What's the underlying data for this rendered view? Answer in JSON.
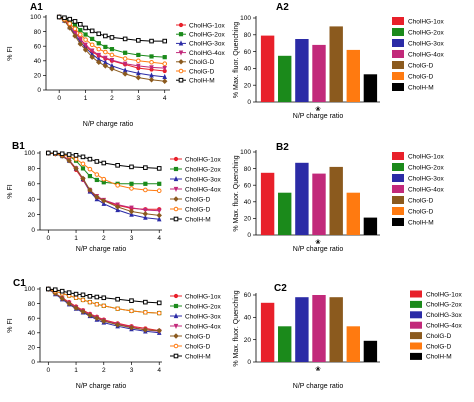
{
  "figure": {
    "panels": [
      "A1",
      "A2",
      "B1",
      "B2",
      "C1",
      "C2"
    ]
  },
  "legend": {
    "series": [
      "CholHG-1ox",
      "CholHG-2ox",
      "CholHG-3ox",
      "CholHG-4ox",
      "CholG-D",
      "CholG-D",
      "CholH-M"
    ],
    "colors": [
      "#e8202a",
      "#1b8a1b",
      "#2b2ba6",
      "#c2297a",
      "#8b5a1e",
      "#ff7a10",
      "#000000"
    ]
  },
  "chart_data": [
    {
      "panel": "A1",
      "type": "line",
      "xlabel": "N/P charge ratio",
      "ylabel": "% FI",
      "xlim": [
        -0.5,
        4.2
      ],
      "ylim": [
        0,
        100
      ],
      "xticks": [
        "0",
        "1",
        "2",
        "3",
        "4"
      ],
      "yticks": [
        "0",
        "20",
        "40",
        "60",
        "80",
        "100"
      ],
      "x": [
        0,
        0.2,
        0.4,
        0.6,
        0.8,
        1.0,
        1.25,
        1.5,
        1.75,
        2.0,
        2.5,
        3.0,
        3.5,
        4.0
      ],
      "series": [
        {
          "name": "CholHG-1ox",
          "values": [
            100,
            96,
            88,
            80,
            70,
            60,
            52,
            47,
            43,
            40,
            35,
            30,
            28,
            26
          ]
        },
        {
          "name": "CholHG-2ox",
          "values": [
            100,
            98,
            94,
            89,
            82,
            76,
            70,
            64,
            59,
            56,
            51,
            48,
            46,
            45
          ]
        },
        {
          "name": "CholHG-3ox",
          "values": [
            100,
            95,
            86,
            76,
            66,
            58,
            49,
            42,
            38,
            33,
            27,
            23,
            20,
            18
          ]
        },
        {
          "name": "CholHG-4ox",
          "values": [
            100,
            96,
            88,
            79,
            70,
            62,
            54,
            48,
            44,
            41,
            36,
            33,
            31,
            30
          ]
        },
        {
          "name": "CholG-D",
          "values": [
            100,
            95,
            85,
            74,
            63,
            55,
            45,
            38,
            33,
            29,
            22,
            17,
            14,
            12
          ]
        },
        {
          "name": "CholG-D",
          "values": [
            100,
            97,
            91,
            84,
            76,
            69,
            62,
            56,
            52,
            48,
            43,
            40,
            38,
            36
          ]
        },
        {
          "name": "CholH-M",
          "values": [
            100,
            99,
            97,
            94,
            90,
            85,
            81,
            77,
            74,
            72,
            70,
            68,
            67,
            67
          ]
        }
      ]
    },
    {
      "panel": "A2",
      "type": "bar",
      "xlabel": "N/P charge ratio",
      "ylabel": "% Max. fluor. Quenching",
      "ylim": [
        0,
        100
      ],
      "yticks": [
        "0",
        "20",
        "40",
        "60",
        "80",
        "100"
      ],
      "categories": [
        "CholHG-1ox",
        "CholHG-2ox",
        "CholHG-3ox",
        "CholHG-4ox",
        "CholG-D",
        "CholG-D",
        "CholH-M"
      ],
      "values": [
        79,
        55,
        75,
        68,
        90,
        62,
        33
      ]
    },
    {
      "panel": "B1",
      "type": "line",
      "xlabel": "N/P charge ratio",
      "ylabel": "% FI",
      "xlim": [
        -0.3,
        4.1
      ],
      "ylim": [
        0,
        100
      ],
      "xticks": [
        "0",
        "1",
        "2",
        "3",
        "4"
      ],
      "yticks": [
        "0",
        "20",
        "40",
        "60",
        "80",
        "100"
      ],
      "x": [
        0,
        0.25,
        0.5,
        0.75,
        1.0,
        1.25,
        1.5,
        1.75,
        2.0,
        2.5,
        3.0,
        3.5,
        4.0
      ],
      "series": [
        {
          "name": "CholHG-1ox",
          "values": [
            100,
            99,
            97,
            90,
            78,
            65,
            50,
            42,
            38,
            32,
            28,
            27,
            27
          ]
        },
        {
          "name": "CholHG-2ox",
          "values": [
            100,
            99,
            98,
            96,
            90,
            80,
            70,
            65,
            62,
            60,
            60,
            60,
            60
          ]
        },
        {
          "name": "CholHG-3ox",
          "values": [
            100,
            99,
            96,
            90,
            80,
            66,
            50,
            40,
            34,
            26,
            20,
            16,
            14
          ]
        },
        {
          "name": "CholHG-4ox",
          "values": [
            100,
            99,
            97,
            91,
            80,
            66,
            52,
            44,
            39,
            33,
            29,
            26,
            25
          ]
        },
        {
          "name": "CholG-D",
          "values": [
            100,
            99,
            96,
            90,
            80,
            67,
            52,
            43,
            38,
            30,
            24,
            21,
            19
          ]
        },
        {
          "name": "CholG-D",
          "values": [
            100,
            99,
            98,
            96,
            92,
            86,
            79,
            72,
            66,
            58,
            54,
            52,
            51
          ]
        },
        {
          "name": "CholH-M",
          "values": [
            100,
            100,
            99,
            98,
            97,
            95,
            92,
            89,
            87,
            84,
            82,
            81,
            80
          ]
        }
      ]
    },
    {
      "panel": "B2",
      "type": "bar",
      "xlabel": "N/P charge ratio",
      "ylabel": "% Max. fluor. Quenching",
      "ylim": [
        0,
        100
      ],
      "yticks": [
        "0",
        "20",
        "40",
        "60",
        "80",
        "100"
      ],
      "categories": [
        "CholHG-1ox",
        "CholHG-2ox",
        "CholHG-3ox",
        "CholHG-4ox",
        "CholG-D",
        "CholG-D",
        "CholH-M"
      ],
      "values": [
        75,
        51,
        87,
        74,
        82,
        51,
        21
      ]
    },
    {
      "panel": "C1",
      "type": "line",
      "xlabel": "N/P charge ratio",
      "ylabel": "% FI",
      "xlim": [
        -0.3,
        4.1
      ],
      "ylim": [
        0,
        100
      ],
      "xticks": [
        "0",
        "1",
        "2",
        "3",
        "4"
      ],
      "yticks": [
        "0",
        "20",
        "40",
        "60",
        "80",
        "100"
      ],
      "x": [
        0,
        0.25,
        0.5,
        0.75,
        1.0,
        1.25,
        1.5,
        1.75,
        2.0,
        2.5,
        3.0,
        3.5,
        4.0
      ],
      "series": [
        {
          "name": "CholHG-1ox",
          "values": [
            100,
            94,
            88,
            82,
            76,
            71,
            66,
            62,
            58,
            53,
            49,
            46,
            43
          ]
        },
        {
          "name": "CholHG-2ox",
          "values": [
            100,
            97,
            94,
            91,
            88,
            85,
            82,
            79,
            77,
            73,
            70,
            68,
            67
          ]
        },
        {
          "name": "CholHG-3ox",
          "values": [
            100,
            93,
            86,
            79,
            73,
            68,
            63,
            58,
            54,
            49,
            45,
            42,
            40
          ]
        },
        {
          "name": "CholHG-4ox",
          "values": [
            100,
            94,
            87,
            81,
            75,
            70,
            65,
            61,
            57,
            52,
            48,
            44,
            42
          ]
        },
        {
          "name": "CholG-D",
          "values": [
            100,
            94,
            87,
            80,
            74,
            69,
            64,
            60,
            56,
            51,
            47,
            44,
            43
          ]
        },
        {
          "name": "CholG-D",
          "values": [
            100,
            97,
            94,
            91,
            88,
            85,
            82,
            79,
            77,
            73,
            70,
            68,
            67
          ]
        },
        {
          "name": "CholH-M",
          "values": [
            100,
            99,
            97,
            95,
            93,
            92,
            90,
            89,
            88,
            86,
            84,
            82,
            81
          ]
        }
      ]
    },
    {
      "panel": "C2",
      "type": "bar",
      "xlabel": "N/P charge ratio",
      "ylabel": "% Max. fluor. Quenching",
      "ylim": [
        0,
        60
      ],
      "yticks": [
        "0",
        "20",
        "40",
        "60"
      ],
      "categories": [
        "CholHG-1ox",
        "CholHG-2ox",
        "CholHG-3ox",
        "CholHG-4ox",
        "CholG-D",
        "CholG-D",
        "CholH-M"
      ],
      "values": [
        53,
        32,
        58,
        60,
        58,
        32,
        19
      ]
    }
  ]
}
